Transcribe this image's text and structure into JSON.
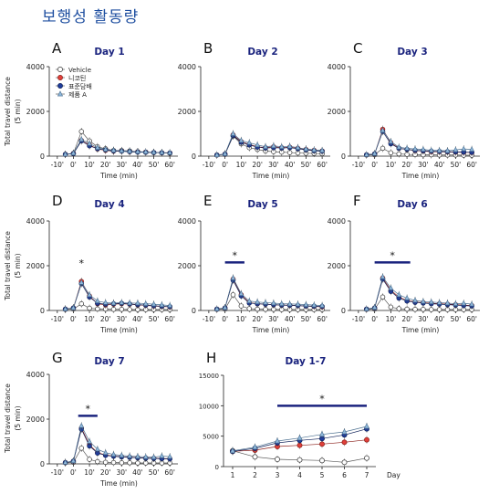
{
  "heading": "보행성 활동량",
  "shared": {
    "ylabel": "Total travel distance\n(5 min)",
    "xlabel": "Time (min)",
    "x_ticks": [
      "-10'",
      "0'",
      "10'",
      "20'",
      "30'",
      "40'",
      "50'",
      "60'"
    ],
    "x_values": [
      -5,
      0,
      5,
      10,
      15,
      20,
      25,
      30,
      35,
      40,
      45,
      50,
      55,
      60
    ],
    "ylim": [
      0,
      4000
    ],
    "y_ticks": [
      0,
      2000,
      4000
    ],
    "colors": {
      "vehicle": "#ffffff",
      "nicotine": "#e0403a",
      "standard": "#1f3d9c",
      "product_a": "#8fb8dc",
      "title": "#1a237e",
      "sig_bar": "#1a237e"
    }
  },
  "legend": [
    "Vehicle",
    "니코틴",
    "표준담배",
    "제품 A"
  ],
  "chart_data": [
    {
      "letter": "A",
      "title": "Day 1",
      "type": "line",
      "x": [
        -5,
        0,
        5,
        10,
        15,
        20,
        25,
        30,
        35,
        40,
        45,
        50,
        55,
        60
      ],
      "series": [
        {
          "name": "Vehicle",
          "values": [
            80,
            120,
            1100,
            680,
            420,
            330,
            250,
            250,
            230,
            200,
            180,
            160,
            150,
            130
          ]
        },
        {
          "name": "니코틴",
          "values": [
            80,
            120,
            700,
            500,
            320,
            260,
            220,
            230,
            200,
            190,
            180,
            160,
            150,
            140
          ]
        },
        {
          "name": "표준담배",
          "values": [
            80,
            110,
            680,
            460,
            330,
            280,
            230,
            220,
            200,
            180,
            170,
            160,
            150,
            140
          ]
        },
        {
          "name": "제품 A",
          "values": [
            80,
            130,
            750,
            560,
            380,
            300,
            260,
            240,
            220,
            200,
            190,
            170,
            160,
            150
          ]
        }
      ]
    },
    {
      "letter": "B",
      "title": "Day 2",
      "type": "line",
      "x": [
        -5,
        0,
        5,
        10,
        15,
        20,
        25,
        30,
        35,
        40,
        45,
        50,
        55,
        60
      ],
      "series": [
        {
          "name": "Vehicle",
          "values": [
            50,
            80,
            900,
            550,
            380,
            300,
            230,
            200,
            180,
            160,
            140,
            130,
            120,
            110
          ]
        },
        {
          "name": "니코틴",
          "values": [
            50,
            90,
            950,
            650,
            520,
            420,
            380,
            420,
            380,
            400,
            350,
            300,
            260,
            230
          ]
        },
        {
          "name": "표준담배",
          "values": [
            50,
            90,
            920,
            620,
            500,
            400,
            360,
            380,
            360,
            380,
            330,
            280,
            240,
            220
          ]
        },
        {
          "name": "제품 A",
          "values": [
            50,
            100,
            1000,
            700,
            600,
            500,
            420,
            460,
            420,
            440,
            380,
            320,
            280,
            250
          ]
        }
      ]
    },
    {
      "letter": "C",
      "title": "Day 3",
      "type": "line",
      "x": [
        -5,
        0,
        5,
        10,
        15,
        20,
        25,
        30,
        35,
        40,
        45,
        50,
        55,
        60
      ],
      "series": [
        {
          "name": "Vehicle",
          "values": [
            50,
            60,
            350,
            150,
            100,
            80,
            70,
            60,
            60,
            50,
            50,
            50,
            40,
            40
          ]
        },
        {
          "name": "니코틴",
          "values": [
            60,
            100,
            1200,
            600,
            350,
            300,
            250,
            230,
            200,
            200,
            190,
            180,
            170,
            160
          ]
        },
        {
          "name": "표준담배",
          "values": [
            60,
            100,
            1100,
            550,
            350,
            300,
            260,
            240,
            220,
            210,
            200,
            190,
            180,
            170
          ]
        },
        {
          "name": "제품 A",
          "values": [
            60,
            110,
            1150,
            650,
            400,
            350,
            320,
            300,
            260,
            250,
            240,
            280,
            320,
            300
          ]
        }
      ]
    },
    {
      "letter": "D",
      "title": "Day 4",
      "type": "line",
      "x": [
        -5,
        0,
        5,
        10,
        15,
        20,
        25,
        30,
        35,
        40,
        45,
        50,
        55,
        60
      ],
      "series": [
        {
          "name": "Vehicle",
          "values": [
            50,
            60,
            300,
            100,
            70,
            60,
            50,
            50,
            40,
            40,
            40,
            40,
            40,
            40
          ]
        },
        {
          "name": "니코틴",
          "values": [
            60,
            110,
            1300,
            650,
            300,
            250,
            280,
            300,
            280,
            250,
            230,
            200,
            180,
            160
          ]
        },
        {
          "name": "표준담배",
          "values": [
            60,
            110,
            1200,
            600,
            320,
            280,
            300,
            320,
            290,
            260,
            240,
            210,
            190,
            170
          ]
        },
        {
          "name": "제품 A",
          "values": [
            60,
            110,
            1250,
            700,
            420,
            350,
            330,
            350,
            330,
            330,
            300,
            280,
            250,
            220
          ]
        }
      ],
      "annotations": [
        {
          "text": "*",
          "at_x": 5
        }
      ]
    },
    {
      "letter": "E",
      "title": "Day 5",
      "type": "line",
      "x": [
        -5,
        0,
        5,
        10,
        15,
        20,
        25,
        30,
        35,
        40,
        45,
        50,
        55,
        60
      ],
      "series": [
        {
          "name": "Vehicle",
          "values": [
            50,
            60,
            700,
            200,
            80,
            60,
            50,
            50,
            40,
            40,
            40,
            40,
            40,
            40
          ]
        },
        {
          "name": "니코틴",
          "values": [
            60,
            110,
            1400,
            700,
            350,
            300,
            280,
            260,
            240,
            230,
            220,
            200,
            180,
            160
          ]
        },
        {
          "name": "표준담배",
          "values": [
            60,
            110,
            1350,
            650,
            330,
            300,
            280,
            260,
            240,
            230,
            220,
            200,
            190,
            180
          ]
        },
        {
          "name": "제품 A",
          "values": [
            60,
            120,
            1450,
            750,
            420,
            380,
            350,
            330,
            300,
            290,
            280,
            260,
            240,
            220
          ]
        }
      ],
      "annotations": [
        {
          "text": "*",
          "from_x": 0,
          "to_x": 12
        }
      ]
    },
    {
      "letter": "F",
      "title": "Day 6",
      "type": "line",
      "x": [
        -5,
        0,
        5,
        10,
        15,
        20,
        25,
        30,
        35,
        40,
        45,
        50,
        55,
        60
      ],
      "series": [
        {
          "name": "Vehicle",
          "values": [
            50,
            60,
            600,
            150,
            80,
            60,
            50,
            50,
            40,
            40,
            40,
            40,
            40,
            40
          ]
        },
        {
          "name": "니코틴",
          "values": [
            60,
            110,
            1450,
            900,
            600,
            450,
            380,
            350,
            320,
            300,
            280,
            260,
            240,
            220
          ]
        },
        {
          "name": "표준담배",
          "values": [
            60,
            110,
            1400,
            850,
            550,
            420,
            360,
            330,
            300,
            280,
            260,
            240,
            220,
            200
          ]
        },
        {
          "name": "제품 A",
          "values": [
            60,
            130,
            1500,
            1000,
            700,
            550,
            450,
            400,
            380,
            350,
            330,
            300,
            320,
            280
          ]
        }
      ],
      "annotations": [
        {
          "text": "*",
          "from_x": 0,
          "to_x": 22
        }
      ]
    },
    {
      "letter": "G",
      "title": "Day 7",
      "type": "line",
      "x": [
        -5,
        0,
        5,
        10,
        15,
        20,
        25,
        30,
        35,
        40,
        45,
        50,
        55,
        60
      ],
      "series": [
        {
          "name": "Vehicle",
          "values": [
            50,
            70,
            700,
            200,
            100,
            70,
            60,
            50,
            50,
            40,
            40,
            40,
            40,
            40
          ]
        },
        {
          "name": "니코틴",
          "values": [
            60,
            120,
            1600,
            850,
            500,
            400,
            350,
            320,
            300,
            280,
            260,
            250,
            240,
            230
          ]
        },
        {
          "name": "표준담배",
          "values": [
            60,
            120,
            1550,
            800,
            480,
            380,
            340,
            310,
            290,
            270,
            250,
            240,
            230,
            220
          ]
        },
        {
          "name": "제품 A",
          "values": [
            60,
            130,
            1700,
            1000,
            650,
            500,
            420,
            380,
            350,
            330,
            310,
            300,
            350,
            320
          ]
        }
      ],
      "annotations": [
        {
          "text": "*",
          "from_x": 3,
          "to_x": 15
        }
      ]
    },
    {
      "letter": "H",
      "title": "Day 1-7",
      "type": "line",
      "categories": [
        "1",
        "2",
        "3",
        "4",
        "5",
        "6",
        "7"
      ],
      "xlabel": "Day",
      "ylim": [
        0,
        15000
      ],
      "y_ticks": [
        0,
        5000,
        10000,
        15000
      ],
      "series": [
        {
          "name": "Vehicle",
          "values": [
            2600,
            1600,
            1200,
            1100,
            1000,
            700,
            1400
          ]
        },
        {
          "name": "니코틴",
          "values": [
            2500,
            2700,
            3300,
            3500,
            3700,
            4000,
            4400
          ]
        },
        {
          "name": "표준담배",
          "values": [
            2500,
            3000,
            3900,
            4300,
            4600,
            5200,
            6200
          ]
        },
        {
          "name": "제품 A",
          "values": [
            2600,
            3200,
            4200,
            4700,
            5300,
            5700,
            6600
          ]
        }
      ],
      "annotations": [
        {
          "text": "*",
          "from_day": 3,
          "to_day": 7
        }
      ]
    }
  ]
}
